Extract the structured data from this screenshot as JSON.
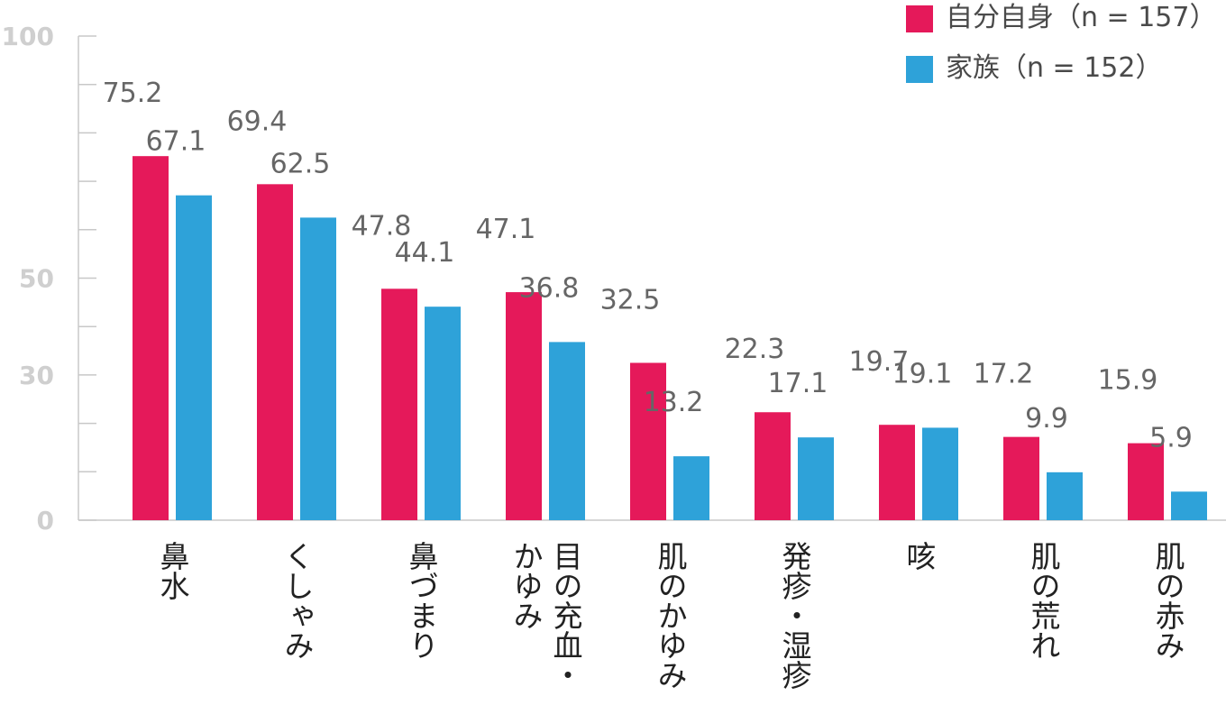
{
  "chart_data": {
    "type": "bar",
    "categories": [
      "鼻水",
      "くしゃみ",
      "鼻づまり",
      "目の充血・かゆみ",
      "肌のかゆみ",
      "発疹・湿疹",
      "咳",
      "肌の荒れ",
      "肌の赤み"
    ],
    "category_lines": [
      [
        "鼻水"
      ],
      [
        "くしゃみ"
      ],
      [
        "鼻づまり"
      ],
      [
        "目の充血・",
        "かゆみ"
      ],
      [
        "肌のかゆみ"
      ],
      [
        "発疹・湿疹"
      ],
      [
        "咳"
      ],
      [
        "肌の荒れ"
      ],
      [
        "肌の赤み"
      ]
    ],
    "series": [
      {
        "name": "自分自身（n = 157）",
        "color": "#e5195a",
        "values": [
          75.2,
          69.4,
          47.8,
          47.1,
          32.5,
          22.3,
          19.7,
          17.2,
          15.9
        ]
      },
      {
        "name": "家族（n = 152）",
        "color": "#2ea2d9",
        "values": [
          67.1,
          62.5,
          44.1,
          36.8,
          13.2,
          17.1,
          19.1,
          9.9,
          5.9
        ]
      }
    ],
    "value_labels": [
      [
        "75.2",
        "69.4",
        "47.8",
        "47.1",
        "32.5",
        "22.3",
        "19.7",
        "17.2",
        "15.9"
      ],
      [
        "67.1",
        "62.5",
        "44.1",
        "36.8",
        "13.2",
        "17.1",
        "19.1",
        "9.9",
        "5.9"
      ]
    ],
    "ylim": [
      0,
      100
    ],
    "yticks": [
      0,
      30,
      50,
      100
    ],
    "minor_ticks": [
      10,
      20,
      40,
      60,
      70,
      80,
      90
    ],
    "legend_position": "top-right",
    "grid": false
  }
}
